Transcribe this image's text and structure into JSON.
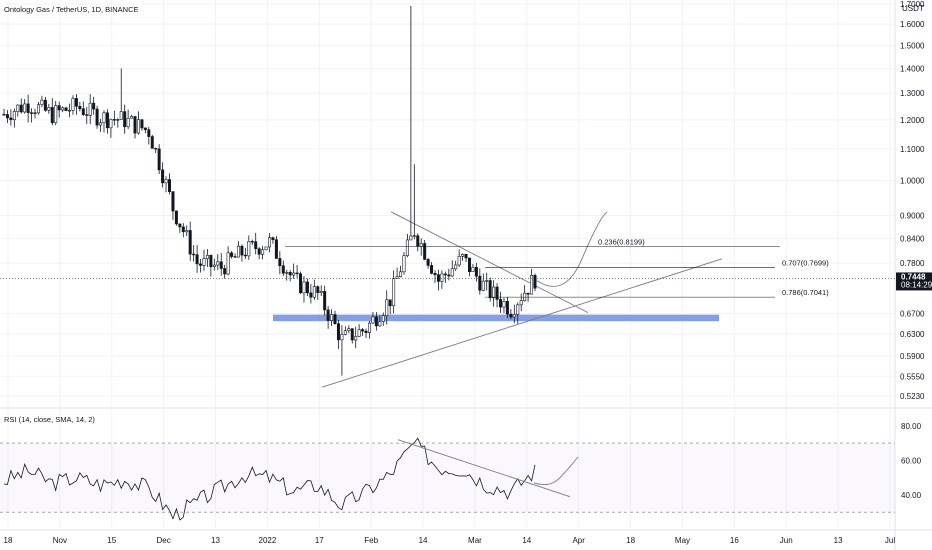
{
  "header": {
    "title": "Ontology Gas / TetherUS, 1D, BINANCE"
  },
  "price_axis": {
    "currency": "USDT",
    "ticks": [
      "1.7000",
      "1.6000",
      "1.5000",
      "1.4000",
      "1.3000",
      "1.2000",
      "1.1000",
      "1.0000",
      "0.9000",
      "0.8400",
      "0.7800",
      "0.6700",
      "0.6300",
      "0.5900",
      "0.5550",
      "0.5230"
    ],
    "current_price": "0.7448",
    "countdown": "08:14:29"
  },
  "fib_levels": [
    {
      "label": "0.236(0.8199)",
      "price": 0.8199
    },
    {
      "label": "0.707(0.7699)",
      "price": 0.7699
    },
    {
      "label": "0.786(0.7041)",
      "price": 0.7041
    }
  ],
  "rsi_panel": {
    "title": "RSI (14, close, SMA, 14, 2)",
    "ticks": [
      "80.00",
      "60.00",
      "40.00"
    ],
    "upper_band": 70,
    "lower_band": 30
  },
  "time_axis": {
    "labels": [
      "18",
      "Nov",
      "15",
      "Dec",
      "13",
      "2022",
      "17",
      "Feb",
      "14",
      "Mar",
      "14",
      "Apr",
      "18",
      "May",
      "16",
      "Jun",
      "13",
      "Jul"
    ]
  },
  "colors": {
    "candle": "#131722",
    "support_zone": "#6e8ee6",
    "price_label_bg": "#131722",
    "grid": "#f0f3fa",
    "drawing": "#787b86",
    "rsi_line": "#131722"
  },
  "chart_data": {
    "type": "candlestick",
    "title": "Ontology Gas / TetherUS, 1D, BINANCE",
    "xlabel": "",
    "ylabel": "USDT",
    "y_scale": "log",
    "ylim": [
      0.523,
      1.7
    ],
    "support_zone": [
      0.655,
      0.668
    ],
    "current_price": 0.7448,
    "price_series": [
      {
        "x": "Oct 18",
        "close": 1.22
      },
      {
        "x": "Oct 25",
        "close": 1.26
      },
      {
        "x": "Nov 1",
        "close": 1.22
      },
      {
        "x": "Nov 8",
        "close": 1.25
      },
      {
        "x": "Nov 15",
        "close": 1.21
      },
      {
        "x": "Nov 22",
        "close": 1.2
      },
      {
        "x": "Nov 29",
        "close": 1.16
      },
      {
        "x": "Dec 6",
        "close": 0.92
      },
      {
        "x": "Dec 13",
        "close": 0.78
      },
      {
        "x": "Dec 20",
        "close": 0.77
      },
      {
        "x": "Dec 27",
        "close": 0.81
      },
      {
        "x": "Jan 3",
        "close": 0.83
      },
      {
        "x": "Jan 10",
        "close": 0.74
      },
      {
        "x": "Jan 17",
        "close": 0.71
      },
      {
        "x": "Jan 24",
        "close": 0.62
      },
      {
        "x": "Jan 31",
        "close": 0.64
      },
      {
        "x": "Feb 7",
        "close": 0.7
      },
      {
        "x": "Feb 14",
        "close": 0.86
      },
      {
        "x": "Feb 21",
        "close": 0.74
      },
      {
        "x": "Feb 28",
        "close": 0.79
      },
      {
        "x": "Mar 7",
        "close": 0.72
      },
      {
        "x": "Mar 14",
        "close": 0.68
      },
      {
        "x": "Mar 21",
        "close": 0.7448
      }
    ],
    "rsi_series": [
      {
        "x": "Oct 18",
        "value": 48
      },
      {
        "x": "Oct 25",
        "value": 54
      },
      {
        "x": "Nov 1",
        "value": 47
      },
      {
        "x": "Nov 8",
        "value": 50
      },
      {
        "x": "Nov 15",
        "value": 46
      },
      {
        "x": "Nov 22",
        "value": 49
      },
      {
        "x": "Nov 29",
        "value": 44
      },
      {
        "x": "Dec 6",
        "value": 28
      },
      {
        "x": "Dec 13",
        "value": 36
      },
      {
        "x": "Dec 20",
        "value": 44
      },
      {
        "x": "Dec 27",
        "value": 52
      },
      {
        "x": "Jan 3",
        "value": 50
      },
      {
        "x": "Jan 10",
        "value": 42
      },
      {
        "x": "Jan 17",
        "value": 46
      },
      {
        "x": "Jan 24",
        "value": 34
      },
      {
        "x": "Jan 31",
        "value": 42
      },
      {
        "x": "Feb 7",
        "value": 52
      },
      {
        "x": "Feb 14",
        "value": 70
      },
      {
        "x": "Feb 21",
        "value": 56
      },
      {
        "x": "Feb 28",
        "value": 55
      },
      {
        "x": "Mar 7",
        "value": 46
      },
      {
        "x": "Mar 14",
        "value": 42
      },
      {
        "x": "Mar 21",
        "value": 54
      }
    ]
  }
}
